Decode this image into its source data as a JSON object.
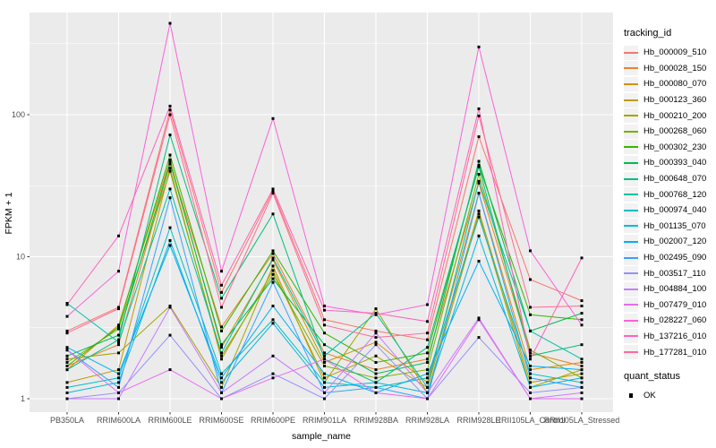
{
  "chart_data": {
    "type": "line",
    "title": "",
    "xlabel": "sample_name",
    "ylabel": "FPKM + 1",
    "y_scale": "log10",
    "y_ticks": [
      1,
      10,
      100
    ],
    "y_tick_labels": [
      "1",
      "10",
      "100"
    ],
    "y_minor_ticks": [
      3.162,
      31.623,
      316.228
    ],
    "ylim": [
      1,
      580
    ],
    "grid": true,
    "legend_position": "right",
    "marker": "square",
    "categories": [
      "PB350LA",
      "RRIM600LA",
      "RRIM600LE",
      "RRIM600SE",
      "RRIM600PE",
      "RRIM901LA",
      "RRIM928BA",
      "RRIM928LA",
      "RRIM928LE",
      "RRII105LA_Control",
      "RRII105LA_Stressed"
    ],
    "series": [
      {
        "name": "Hb_000009_510",
        "color": "#F8766D",
        "values": [
          3.0,
          4.4,
          108,
          5.6,
          29,
          3.6,
          3.0,
          2.6,
          70,
          6.9,
          4.9
        ]
      },
      {
        "name": "Hb_000028_150",
        "color": "#EA8331",
        "values": [
          1.7,
          2.4,
          45,
          3.2,
          10.5,
          2.1,
          1.6,
          1.9,
          33,
          2.1,
          1.7
        ]
      },
      {
        "name": "Hb_000080_070",
        "color": "#D89000",
        "values": [
          1.6,
          3.3,
          48,
          2.3,
          9.5,
          1.8,
          2.5,
          1.3,
          28,
          1.6,
          1.8
        ]
      },
      {
        "name": "Hb_000123_360",
        "color": "#C09B00",
        "values": [
          1.3,
          1.6,
          42,
          1.9,
          8.0,
          1.4,
          2.0,
          1.2,
          21,
          1.3,
          1.5
        ]
      },
      {
        "name": "Hb_000210_200",
        "color": "#A3A500",
        "values": [
          1.9,
          2.1,
          4.5,
          1.2,
          8.6,
          1.3,
          4.3,
          1.1,
          20,
          1.2,
          1.6
        ]
      },
      {
        "name": "Hb_000268_060",
        "color": "#7CAE00",
        "values": [
          1.8,
          3.1,
          40,
          2.0,
          7.5,
          1.7,
          1.4,
          1.6,
          38,
          2.2,
          1.4
        ]
      },
      {
        "name": "Hb_000302_230",
        "color": "#39B600",
        "values": [
          1.7,
          3.2,
          52,
          3.0,
          11,
          2.9,
          1.8,
          2.1,
          44,
          3.9,
          3.6
        ]
      },
      {
        "name": "Hb_000393_040",
        "color": "#00BB4E",
        "values": [
          2.0,
          2.8,
          46,
          2.4,
          7.0,
          2.4,
          1.5,
          1.8,
          47,
          3.0,
          4.0
        ]
      },
      {
        "name": "Hb_000648_070",
        "color": "#00BF7D",
        "values": [
          1.6,
          2.6,
          72,
          5.1,
          20,
          1.9,
          1.3,
          2.3,
          43,
          2.0,
          2.4
        ]
      },
      {
        "name": "Hb_000768_120",
        "color": "#00C1A3",
        "values": [
          4.7,
          2.5,
          30,
          2.1,
          9.8,
          2.0,
          4.0,
          1.2,
          34,
          3.0,
          1.9
        ]
      },
      {
        "name": "Hb_000974_040",
        "color": "#00BFC4",
        "values": [
          1.2,
          1.4,
          16,
          1.5,
          3.6,
          1.3,
          1.2,
          1.4,
          19,
          1.5,
          1.3
        ]
      },
      {
        "name": "Hb_001135_070",
        "color": "#00BAE0",
        "values": [
          1.1,
          1.3,
          13,
          1.3,
          3.4,
          1.2,
          1.3,
          1.1,
          14,
          1.2,
          1.4
        ]
      },
      {
        "name": "Hb_002007_120",
        "color": "#00B0F6",
        "values": [
          2.3,
          1.5,
          12,
          1.4,
          4.5,
          1.5,
          1.1,
          1.5,
          9.3,
          1.7,
          1.6
        ]
      },
      {
        "name": "Hb_002495_090",
        "color": "#35A2FF",
        "values": [
          2.2,
          1.2,
          26,
          1.1,
          6.6,
          1.1,
          1.2,
          1.0,
          28,
          1.4,
          1.2
        ]
      },
      {
        "name": "Hb_003517_110",
        "color": "#9590FF",
        "values": [
          1.0,
          1.1,
          2.8,
          1.0,
          1.5,
          1.0,
          2.4,
          1.0,
          2.7,
          1.1,
          1.2
        ]
      },
      {
        "name": "Hb_004884_100",
        "color": "#C77CFF",
        "values": [
          1.0,
          1.0,
          4.4,
          1.1,
          2.0,
          1.1,
          2.9,
          1.1,
          3.7,
          1.0,
          1.1
        ]
      },
      {
        "name": "Hb_007479_010",
        "color": "#E76BF3",
        "values": [
          2.2,
          1.1,
          1.6,
          1.0,
          1.4,
          1.9,
          1.1,
          1.0,
          3.6,
          1.0,
          1.0
        ]
      },
      {
        "name": "Hb_028227_060",
        "color": "#FA62DB",
        "values": [
          3.8,
          7.9,
          440,
          7.9,
          94,
          4.5,
          3.9,
          4.6,
          300,
          11,
          3.3
        ]
      },
      {
        "name": "Hb_137216_010",
        "color": "#FF62BC",
        "values": [
          4.6,
          14,
          115,
          6.3,
          30,
          4.2,
          4.0,
          3.5,
          110,
          1.9,
          9.8
        ]
      },
      {
        "name": "Hb_177281_010",
        "color": "#FF6A98",
        "values": [
          2.9,
          4.3,
          100,
          4.4,
          28,
          3.3,
          2.7,
          2.9,
          98,
          4.4,
          4.5
        ]
      }
    ]
  },
  "legend": {
    "tracking_title": "tracking_id",
    "quant_title": "quant_status",
    "quant_items": [
      "OK"
    ]
  },
  "style": {
    "panel_bg": "#EBEBEB",
    "grid_color": "#FFFFFF",
    "axis_text_color": "#4D4D4D",
    "tick_color": "#333333",
    "point_color": "#000000",
    "legend_key_bg": "#F2F2F2"
  }
}
